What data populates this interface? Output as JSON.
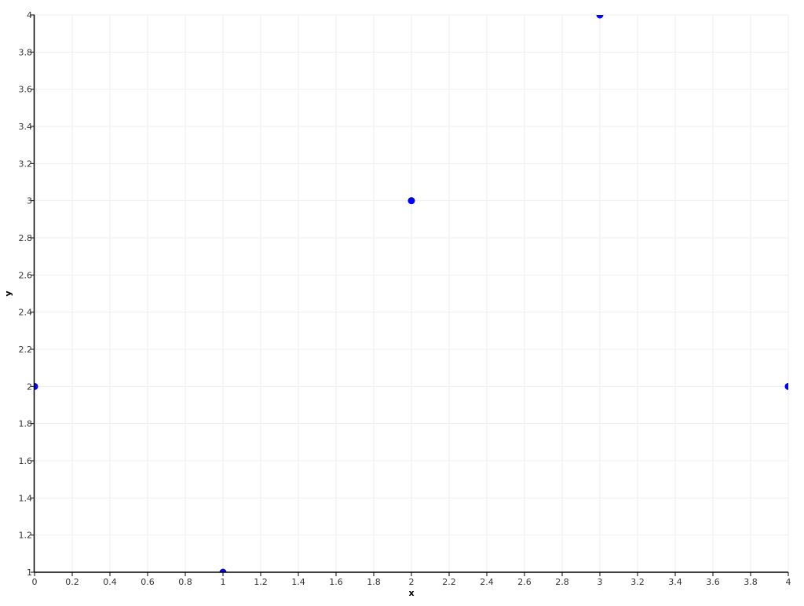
{
  "chart_data": {
    "type": "scatter",
    "title": "",
    "xlabel": "x",
    "ylabel": "y",
    "xlim": [
      0,
      4
    ],
    "ylim": [
      1,
      4
    ],
    "x_ticks": [
      "0",
      "0.2",
      "0.4",
      "0.6",
      "0.8",
      "1",
      "1.2",
      "1.4",
      "1.6",
      "1.8",
      "2",
      "2.2",
      "2.4",
      "2.6",
      "2.8",
      "3",
      "3.2",
      "3.4",
      "3.6",
      "3.8",
      "4"
    ],
    "y_ticks": [
      "1",
      "1.2",
      "1.4",
      "1.6",
      "1.8",
      "2",
      "2.2",
      "2.4",
      "2.6",
      "2.8",
      "3",
      "3.2",
      "3.4",
      "3.6",
      "3.8",
      "4"
    ],
    "grid": true,
    "points_color": "#0000ff",
    "x": [
      0,
      1,
      2,
      3,
      4
    ],
    "y": [
      2,
      1,
      3,
      4,
      2
    ]
  }
}
